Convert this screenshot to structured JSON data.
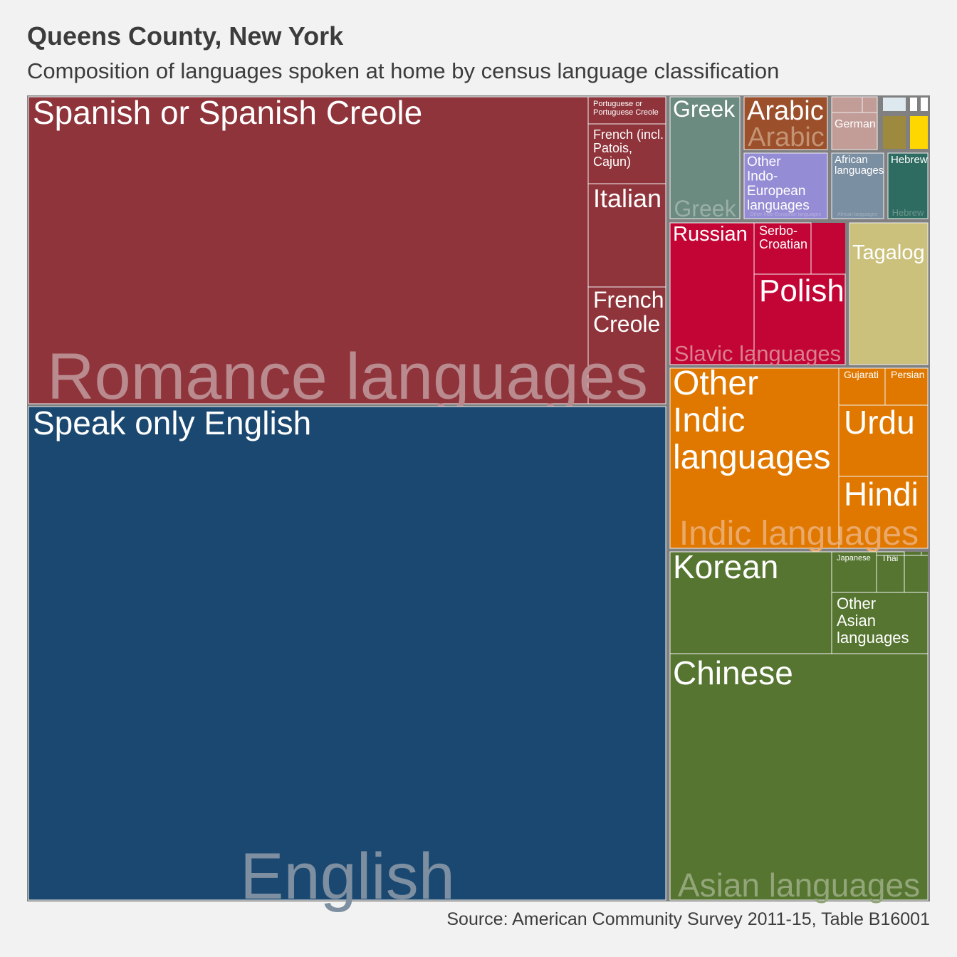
{
  "title": "Queens County, New York",
  "subtitle": "Composition of languages spoken at home by census language classification",
  "caption": "Source: American Community Survey 2011-15, Table B16001",
  "chart_data": {
    "type": "treemap",
    "groups": [
      {
        "name": "English",
        "color": "#1b4870",
        "items": [
          {
            "name": "Speak only English",
            "value": 100
          }
        ]
      },
      {
        "name": "Romance languages",
        "color": "#8f343b",
        "items": [
          {
            "name": "Spanish or Spanish Creole",
            "value": 55
          },
          {
            "name": "Portuguese or Portuguese Creole",
            "value": 0.7
          },
          {
            "name": "French (incl. Patois, Cajun)",
            "value": 1.7
          },
          {
            "name": "Italian",
            "value": 2.5
          },
          {
            "name": "French Creole",
            "value": 2.8
          }
        ]
      },
      {
        "name": "Asian languages",
        "color": "#567530",
        "items": [
          {
            "name": "Chinese",
            "value": 14
          },
          {
            "name": "Korean",
            "value": 5.5
          },
          {
            "name": "Other Asian languages",
            "value": 2.2
          },
          {
            "name": "Japanese",
            "value": 0.6
          },
          {
            "name": "Thai",
            "value": 0.4
          }
        ]
      },
      {
        "name": "Indic languages",
        "color": "#e07800",
        "items": [
          {
            "name": "Other Indic languages",
            "value": 5
          },
          {
            "name": "Urdu",
            "value": 2.6
          },
          {
            "name": "Hindi",
            "value": 2.4
          },
          {
            "name": "Gujarati",
            "value": 0.5
          },
          {
            "name": "Persian",
            "value": 0.5
          }
        ]
      },
      {
        "name": "Slavic languages",
        "color": "#c20534",
        "items": [
          {
            "name": "Russian",
            "value": 3.6
          },
          {
            "name": "Polish",
            "value": 2.5
          },
          {
            "name": "Serbo-Croatian",
            "value": 1.3
          }
        ]
      },
      {
        "name": "Tagalog",
        "color": "#cbc07c",
        "items": [
          {
            "name": "Tagalog",
            "value": 2.4
          }
        ]
      },
      {
        "name": "Greek",
        "color": "#6b8a80",
        "items": [
          {
            "name": "Greek",
            "value": 2.0
          }
        ]
      },
      {
        "name": "Arabic",
        "color": "#9c4f2b",
        "items": [
          {
            "name": "Arabic",
            "value": 0.9
          }
        ]
      },
      {
        "name": "Other Indo-European languages",
        "color": "#948cd4",
        "items": [
          {
            "name": "Other Indo-European languages",
            "value": 1.0
          }
        ]
      },
      {
        "name": "German",
        "color": "#c29d98",
        "items": [
          {
            "name": "German",
            "value": 0.6
          }
        ]
      },
      {
        "name": "African languages",
        "color": "#7b8fa3",
        "items": [
          {
            "name": "African languages",
            "value": 0.6
          }
        ]
      },
      {
        "name": "Hebrew",
        "color": "#2e6b60",
        "items": [
          {
            "name": "Hebrew",
            "value": 0.6
          }
        ]
      }
    ]
  },
  "treemap": {
    "border": "#808080",
    "item_border": "#f0f0f0",
    "label_color": "#ffffff",
    "groups": [
      {
        "name": "Romance languages",
        "color": "#8f343b",
        "group_label": "Romance languages",
        "group_label_color": "#b98a8e",
        "items": [
          {
            "label": "Spanish or Spanish Creole",
            "lines": [
              "Spanish or Spanish Creole"
            ]
          },
          {
            "label": "Portuguese or Portuguese Creole",
            "lines": [
              "Portuguese or",
              "Portuguese Creole"
            ]
          },
          {
            "label": "French (incl. Patois, Cajun)",
            "lines": [
              "French (incl.",
              "Patois,",
              "Cajun)"
            ]
          },
          {
            "label": "Italian",
            "lines": [
              "Italian"
            ]
          },
          {
            "label": "French Creole",
            "lines": [
              "French",
              "Creole"
            ]
          }
        ]
      },
      {
        "name": "English",
        "color": "#1b4870",
        "group_label": "English",
        "group_label_color": "#7d8fa0",
        "items": [
          {
            "label": "Speak only English",
            "lines": [
              "Speak only English"
            ]
          }
        ]
      },
      {
        "name": "Greek",
        "color": "#6b8a80",
        "group_label": "Greek",
        "group_label_color": "#9aafa8",
        "items": [
          {
            "label": "Greek",
            "lines": [
              "Greek"
            ]
          }
        ]
      },
      {
        "name": "Arabic",
        "color": "#9c4f2b",
        "group_label": "Arabic",
        "group_label_color": "#c39474",
        "items": [
          {
            "label": "Arabic",
            "lines": [
              "Arabic"
            ]
          }
        ]
      },
      {
        "name": "German",
        "color": "#c29d98",
        "group_label": "",
        "group_label_color": "#d4bcb8",
        "items": [
          {
            "label": "German",
            "lines": [
              "German"
            ]
          }
        ]
      },
      {
        "name": "Other Indo-European languages",
        "color": "#948cd4",
        "group_label": "Other Indo-European languages",
        "group_label_color": "#b7b1e0",
        "items": [
          {
            "label": "Other Indo-European languages",
            "lines": [
              "Other",
              "Indo-",
              "European",
              "languages"
            ]
          }
        ]
      },
      {
        "name": "African languages",
        "color": "#7b8fa3",
        "group_label": "African languages",
        "group_label_color": "#a2b0bd",
        "items": [
          {
            "label": "African languages",
            "lines": [
              "African",
              "languages"
            ]
          }
        ]
      },
      {
        "name": "Hebrew",
        "color": "#2e6b60",
        "group_label": "Hebrew",
        "group_label_color": "#6d968d",
        "items": [
          {
            "label": "Hebrew",
            "lines": [
              "Hebrew"
            ]
          }
        ]
      },
      {
        "name": "Slavic languages",
        "color": "#c20534",
        "group_label": "Slavic languages",
        "group_label_color": "#d97f8f",
        "items": [
          {
            "label": "Russian",
            "lines": [
              "Russian"
            ]
          },
          {
            "label": "Serbo-Croatian",
            "lines": [
              "Serbo-",
              "Croatian"
            ]
          },
          {
            "label": "Polish",
            "lines": [
              "Polish"
            ]
          }
        ]
      },
      {
        "name": "Tagalog",
        "color": "#cbc07c",
        "group_label": "",
        "group_label_color": "#ddd5a6",
        "items": [
          {
            "label": "Tagalog",
            "lines": [
              "Tagalog"
            ]
          }
        ]
      },
      {
        "name": "Indic languages",
        "color": "#e07800",
        "group_label": "Indic languages",
        "group_label_color": "#eaa869",
        "items": [
          {
            "label": "Other Indic languages",
            "lines": [
              "Other",
              "Indic",
              "languages"
            ]
          },
          {
            "label": "Gujarati",
            "lines": [
              "Gujarati"
            ]
          },
          {
            "label": "Persian",
            "lines": [
              "Persian"
            ]
          },
          {
            "label": "Urdu",
            "lines": [
              "Urdu"
            ]
          },
          {
            "label": "Hindi",
            "lines": [
              "Hindi"
            ]
          }
        ]
      },
      {
        "name": "Asian languages",
        "color": "#567530",
        "group_label": "Asian languages",
        "group_label_color": "#93a67a",
        "items": [
          {
            "label": "Korean",
            "lines": [
              "Korean"
            ]
          },
          {
            "label": "Japanese",
            "lines": [
              "Japanese"
            ]
          },
          {
            "label": "Thai",
            "lines": [
              "Thai"
            ]
          },
          {
            "label": "Other Asian languages",
            "lines": [
              "Other",
              "Asian",
              "languages"
            ]
          },
          {
            "label": "Chinese",
            "lines": [
              "Chinese"
            ]
          }
        ]
      },
      {
        "name": "small-olive",
        "color": "#9e8a3f",
        "group_label": "",
        "group_label_color": "#b8a86c",
        "items": [
          {
            "label": "",
            "lines": []
          }
        ]
      },
      {
        "name": "small-yellow",
        "color": "#ffd700",
        "group_label": "",
        "group_label_color": "#ffe566",
        "items": [
          {
            "label": "",
            "lines": []
          }
        ]
      },
      {
        "name": "small-other",
        "color": "#dde8ef",
        "group_label": "",
        "group_label_color": "#ffffff",
        "items": [
          {
            "label": "",
            "lines": []
          }
        ]
      },
      {
        "name": "small-white-1",
        "color": "#ffffff",
        "group_label": "",
        "group_label_color": "#ffffff",
        "items": [
          {
            "label": "",
            "lines": []
          }
        ]
      },
      {
        "name": "small-white-2",
        "color": "#ffffff",
        "group_label": "",
        "group_label_color": "#ffffff",
        "items": [
          {
            "label": "",
            "lines": []
          }
        ]
      }
    ]
  }
}
